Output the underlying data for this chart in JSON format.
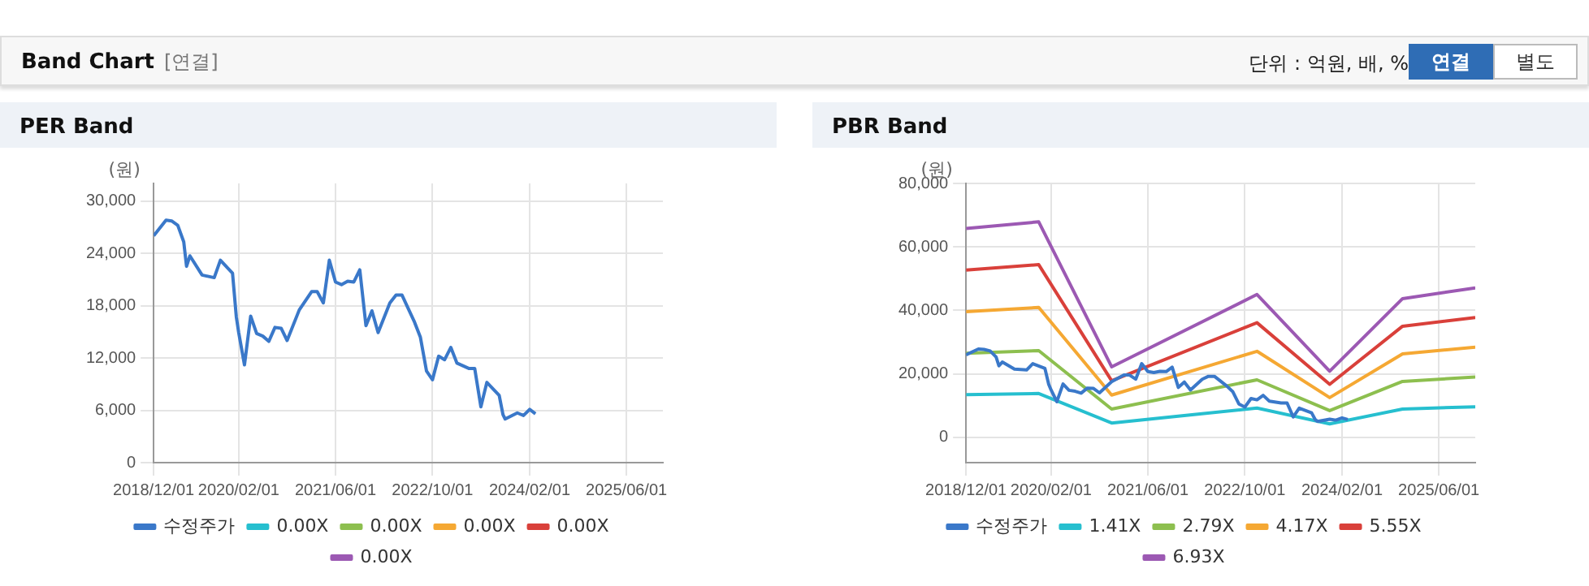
{
  "chart_data": [
    {
      "type": "other",
      "title": "Band Chart",
      "annotations": [
        "[연결]",
        "단위 : 억원, 배, %",
        "연결",
        "별도"
      ]
    },
    {
      "type": "line",
      "title": "PER Band",
      "ylabel": "(원)",
      "xlim": [
        "2018-12-01",
        "2025-12-01"
      ],
      "xticks": [
        {
          "value": "2018-12-01",
          "label": "2018/12/01"
        },
        {
          "value": "2020-02-01",
          "label": "2020/02/01"
        },
        {
          "value": "2021-06-01",
          "label": "2021/06/01"
        },
        {
          "value": "2022-10-01",
          "label": "2022/10/01"
        },
        {
          "value": "2024-02-01",
          "label": "2024/02/01"
        },
        {
          "value": "2025-06-01",
          "label": "2025/06/01"
        }
      ],
      "ylim": [
        0,
        32000
      ],
      "yticks": [
        0,
        {
          "value": 6000,
          "label": "6,000"
        },
        {
          "value": 12000,
          "label": "12,000"
        },
        {
          "value": 18000,
          "label": "18,000"
        },
        {
          "value": 24000,
          "label": "24,000"
        },
        {
          "value": 30000,
          "label": "30,000"
        }
      ],
      "grid": true,
      "legend": "bottom",
      "marker": "none",
      "series": [
        {
          "name": "수정주가",
          "color": "#3a78c9",
          "x": [
            "2018-12-01",
            "2019-02-01",
            "2019-03-01",
            "2019-04-01",
            "2019-05-01",
            "2019-05-15",
            "2019-06-01",
            "2019-08-01",
            "2019-10-01",
            "2019-11-01",
            "2020-01-01",
            "2020-01-20",
            "2020-02-01",
            "2020-03-01",
            "2020-04-01",
            "2020-05-01",
            "2020-06-01",
            "2020-07-01",
            "2020-08-01",
            "2020-09-01",
            "2020-10-01",
            "2020-12-01",
            "2021-02-01",
            "2021-03-01",
            "2021-04-01",
            "2021-05-01",
            "2021-06-01",
            "2021-07-01",
            "2021-08-01",
            "2021-09-01",
            "2021-10-01",
            "2021-11-01",
            "2021-12-01",
            "2022-01-01",
            "2022-03-01",
            "2022-04-01",
            "2022-05-01",
            "2022-07-01",
            "2022-08-01",
            "2022-09-01",
            "2022-10-01",
            "2022-11-01",
            "2022-12-01",
            "2023-01-01",
            "2023-02-01",
            "2023-04-01",
            "2023-05-01",
            "2023-06-01",
            "2023-07-01",
            "2023-09-01",
            "2023-09-20",
            "2023-10-01",
            "2023-12-01",
            "2024-01-01",
            "2024-02-01",
            "2024-03-01"
          ],
          "values": [
            26000,
            27800,
            27700,
            27200,
            25300,
            22500,
            23700,
            21500,
            21200,
            23200,
            21700,
            16700,
            14900,
            11200,
            16800,
            14800,
            14500,
            13900,
            15500,
            15400,
            14000,
            17500,
            19600,
            19600,
            18300,
            23200,
            20700,
            20400,
            20800,
            20700,
            22100,
            15700,
            17400,
            14900,
            18300,
            19200,
            19200,
            16200,
            14400,
            10500,
            9500,
            12200,
            11800,
            13200,
            11400,
            10800,
            10800,
            6400,
            9200,
            7700,
            5500,
            5000,
            5700,
            5400,
            6100,
            5600
          ]
        },
        {
          "name": "0.00X",
          "color": "#26bfcf"
        },
        {
          "name": "0.00X",
          "color": "#8dbf4f"
        },
        {
          "name": "0.00X",
          "color": "#f5a833"
        },
        {
          "name": "0.00X",
          "color": "#d9403a"
        },
        {
          "name": "0.00X",
          "color": "#9c59b3"
        }
      ]
    },
    {
      "type": "line",
      "title": "PBR Band",
      "ylabel": "(원)",
      "xlim": [
        "2018-12-01",
        "2025-12-01"
      ],
      "xticks": [
        {
          "value": "2018-12-01",
          "label": "2018/12/01"
        },
        {
          "value": "2020-02-01",
          "label": "2020/02/01"
        },
        {
          "value": "2021-06-01",
          "label": "2021/06/01"
        },
        {
          "value": "2022-10-01",
          "label": "2022/10/01"
        },
        {
          "value": "2024-02-01",
          "label": "2024/02/01"
        },
        {
          "value": "2025-06-01",
          "label": "2025/06/01"
        }
      ],
      "ylim": [
        -8000,
        80000
      ],
      "yticks": [
        0,
        {
          "value": 20000,
          "label": "20,000"
        },
        {
          "value": 40000,
          "label": "40,000"
        },
        {
          "value": 60000,
          "label": "60,000"
        },
        {
          "value": 80000,
          "label": "80,000"
        }
      ],
      "grid": true,
      "legend": "bottom",
      "marker": "none",
      "series": [
        {
          "name": "수정주가",
          "color": "#3a78c9",
          "x": [
            "2018-12-01",
            "2019-02-01",
            "2019-03-01",
            "2019-04-01",
            "2019-05-01",
            "2019-05-15",
            "2019-06-01",
            "2019-08-01",
            "2019-10-01",
            "2019-11-01",
            "2020-01-01",
            "2020-01-20",
            "2020-02-01",
            "2020-03-01",
            "2020-04-01",
            "2020-05-01",
            "2020-06-01",
            "2020-07-01",
            "2020-08-01",
            "2020-09-01",
            "2020-10-01",
            "2020-12-01",
            "2021-02-01",
            "2021-03-01",
            "2021-04-01",
            "2021-05-01",
            "2021-06-01",
            "2021-07-01",
            "2021-08-01",
            "2021-09-01",
            "2021-10-01",
            "2021-11-01",
            "2021-12-01",
            "2022-01-01",
            "2022-03-01",
            "2022-04-01",
            "2022-05-01",
            "2022-07-01",
            "2022-08-01",
            "2022-09-01",
            "2022-10-01",
            "2022-11-01",
            "2022-12-01",
            "2023-01-01",
            "2023-02-01",
            "2023-04-01",
            "2023-05-01",
            "2023-06-01",
            "2023-07-01",
            "2023-09-01",
            "2023-09-20",
            "2023-10-01",
            "2023-12-01",
            "2024-01-01",
            "2024-02-01",
            "2024-03-01"
          ],
          "values": [
            26000,
            27800,
            27700,
            27200,
            25300,
            22500,
            23700,
            21500,
            21200,
            23200,
            21700,
            16700,
            14900,
            11200,
            16800,
            14800,
            14500,
            13900,
            15500,
            15400,
            14000,
            17500,
            19600,
            19600,
            18300,
            23200,
            20700,
            20400,
            20800,
            20700,
            22100,
            15700,
            17400,
            14900,
            18300,
            19200,
            19200,
            16200,
            14400,
            10500,
            9500,
            12200,
            11800,
            13200,
            11400,
            10800,
            10800,
            6400,
            9200,
            7700,
            5500,
            5000,
            5700,
            5400,
            6100,
            5600
          ]
        },
        {
          "name": "1.41X",
          "color": "#26bfcf",
          "x": [
            "2018-12-01",
            "2019-12-01",
            "2020-12-01",
            "2022-12-01",
            "2023-12-01",
            "2024-12-01",
            "2025-12-01"
          ],
          "values": [
            13400,
            13800,
            4500,
            9200,
            4200,
            8900,
            9600
          ]
        },
        {
          "name": "2.79X",
          "color": "#8dbf4f",
          "x": [
            "2018-12-01",
            "2019-12-01",
            "2020-12-01",
            "2022-12-01",
            "2023-12-01",
            "2024-12-01",
            "2025-12-01"
          ],
          "values": [
            26500,
            27300,
            8900,
            18100,
            8400,
            17600,
            19000
          ]
        },
        {
          "name": "4.17X",
          "color": "#f5a833",
          "x": [
            "2018-12-01",
            "2019-12-01",
            "2020-12-01",
            "2022-12-01",
            "2023-12-01",
            "2024-12-01",
            "2025-12-01"
          ],
          "values": [
            39600,
            40900,
            13300,
            27100,
            12500,
            26300,
            28400
          ]
        },
        {
          "name": "5.55X",
          "color": "#d9403a",
          "x": [
            "2018-12-01",
            "2019-12-01",
            "2020-12-01",
            "2022-12-01",
            "2023-12-01",
            "2024-12-01",
            "2025-12-01"
          ],
          "values": [
            52700,
            54400,
            17800,
            36100,
            16700,
            35000,
            37700
          ]
        },
        {
          "name": "6.93X",
          "color": "#9c59b3",
          "x": [
            "2018-12-01",
            "2019-12-01",
            "2020-12-01",
            "2022-12-01",
            "2023-12-01",
            "2024-12-01",
            "2025-12-01"
          ],
          "values": [
            65800,
            67900,
            22200,
            45000,
            20800,
            43700,
            47100
          ]
        }
      ]
    }
  ]
}
